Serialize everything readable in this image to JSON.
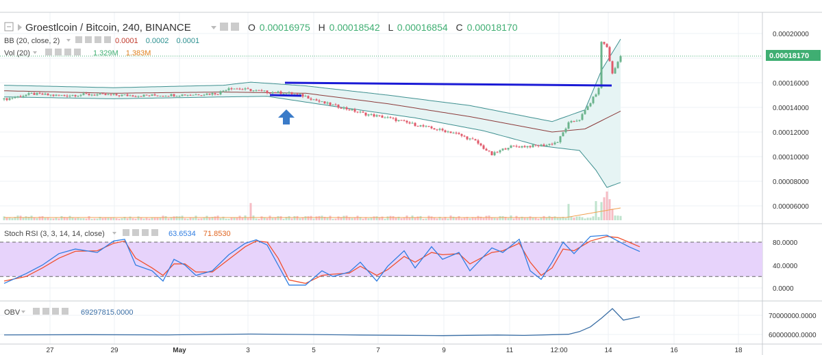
{
  "header": {
    "title": "Groestlcoin / Bitcoin, 240, BINANCE",
    "open_label": "O",
    "open_value": "0.00016975",
    "high_label": "H",
    "high_value": "0.00018542",
    "low_label": "L",
    "low_value": "0.00016854",
    "close_label": "C",
    "close_value": "0.00018170"
  },
  "indicators": {
    "bb": {
      "label": "BB (20, close, 2)",
      "v1": "0.0001",
      "v2": "0.0002",
      "v3": "0.0001"
    },
    "vol": {
      "label": "Vol (20)",
      "v1": "1.329M",
      "v2": "1.383M"
    },
    "stoch": {
      "label": "Stoch RSI (3, 3, 14, 14, close)",
      "k": "63.6534",
      "d": "71.8530"
    },
    "obv": {
      "label": "OBV",
      "value": "69297815.0000"
    }
  },
  "colors": {
    "up": "#6bb38c",
    "down": "#e0596a",
    "bb_band": "#3d8f8f",
    "bb_basis": "#8b3a3a",
    "bb_fill": "#e6f4f4",
    "stoch_fill": "#e7d3fb",
    "k_line": "#2f7de1",
    "d_line": "#f0502e",
    "obv_line": "#3a6ea5",
    "price_tag": "#3fae72",
    "annotation": "#1a1ad6",
    "arrow": "#3a7bc8"
  },
  "price_tag": "0.00018170",
  "x_ticks": [
    "27",
    "29",
    "May",
    "3",
    "5",
    "7",
    "9",
    "11",
    "12:00",
    "14",
    "16",
    "18"
  ],
  "chart_data": [
    {
      "type": "candlestick",
      "title": "Groestlcoin / Bitcoin, 240, BINANCE",
      "y_ticks": [
        "0.00020000",
        "0.00018000",
        "0.00016000",
        "0.00014000",
        "0.00012000",
        "0.00010000",
        "0.00008000",
        "0.00006000"
      ],
      "ylim": [
        5.2e-05,
        0.000208
      ],
      "anchors": [
        {
          "i": 0,
          "c": 0.0001465
        },
        {
          "i": 10,
          "c": 0.000151
        },
        {
          "i": 20,
          "c": 0.0001495
        },
        {
          "i": 30,
          "c": 0.0001505
        },
        {
          "i": 40,
          "c": 0.00015
        },
        {
          "i": 50,
          "c": 0.0001495
        },
        {
          "i": 60,
          "c": 0.00015
        },
        {
          "i": 70,
          "c": 0.0001505
        },
        {
          "i": 78,
          "c": 0.0001515
        },
        {
          "i": 82,
          "c": 0.000156
        },
        {
          "i": 88,
          "c": 0.0001545
        },
        {
          "i": 96,
          "c": 0.0001525
        },
        {
          "i": 104,
          "c": 0.0001515
        },
        {
          "i": 110,
          "c": 0.000149
        },
        {
          "i": 116,
          "c": 0.000144
        },
        {
          "i": 124,
          "c": 0.0001395
        },
        {
          "i": 132,
          "c": 0.0001345
        },
        {
          "i": 140,
          "c": 0.0001315
        },
        {
          "i": 148,
          "c": 0.000127
        },
        {
          "i": 156,
          "c": 0.000123
        },
        {
          "i": 164,
          "c": 0.0001195
        },
        {
          "i": 172,
          "c": 0.0001125
        },
        {
          "i": 178,
          "c": 0.0001015
        },
        {
          "i": 184,
          "c": 0.000108
        },
        {
          "i": 192,
          "c": 0.0001085
        },
        {
          "i": 198,
          "c": 0.0001095
        },
        {
          "i": 202,
          "c": 0.000112
        },
        {
          "i": 206,
          "c": 0.000127
        },
        {
          "i": 210,
          "c": 0.0001305
        },
        {
          "i": 214,
          "c": 0.000144
        },
        {
          "i": 217,
          "c": 0.000155
        },
        {
          "i": 218,
          "c": 0.0001935
        },
        {
          "i": 220,
          "c": 0.000189
        },
        {
          "i": 222,
          "c": 0.000167
        },
        {
          "i": 225,
          "c": 0.000182
        }
      ],
      "bollinger_upper_anchors": [
        {
          "i": 0,
          "v": 0.000158
        },
        {
          "i": 40,
          "v": 0.000156
        },
        {
          "i": 80,
          "v": 0.000158
        },
        {
          "i": 90,
          "v": 0.0001605
        },
        {
          "i": 110,
          "v": 0.0001575
        },
        {
          "i": 140,
          "v": 0.00015
        },
        {
          "i": 170,
          "v": 0.0001415
        },
        {
          "i": 200,
          "v": 0.0001285
        },
        {
          "i": 212,
          "v": 0.000138
        },
        {
          "i": 218,
          "v": 0.00017
        },
        {
          "i": 225,
          "v": 0.0001955
        }
      ],
      "bollinger_basis_anchors": [
        {
          "i": 0,
          "v": 0.0001535
        },
        {
          "i": 40,
          "v": 0.0001515
        },
        {
          "i": 80,
          "v": 0.0001525
        },
        {
          "i": 110,
          "v": 0.0001515
        },
        {
          "i": 140,
          "v": 0.000143
        },
        {
          "i": 170,
          "v": 0.0001325
        },
        {
          "i": 200,
          "v": 0.00012
        },
        {
          "i": 212,
          "v": 0.0001225
        },
        {
          "i": 225,
          "v": 0.000137
        }
      ],
      "bollinger_lower_anchors": [
        {
          "i": 0,
          "v": 0.0001485
        },
        {
          "i": 40,
          "v": 0.000147
        },
        {
          "i": 80,
          "v": 0.0001485
        },
        {
          "i": 96,
          "v": 0.000149
        },
        {
          "i": 120,
          "v": 0.000141
        },
        {
          "i": 150,
          "v": 0.0001315
        },
        {
          "i": 175,
          "v": 0.000121
        },
        {
          "i": 195,
          "v": 0.000109
        },
        {
          "i": 210,
          "v": 0.000105
        },
        {
          "i": 216,
          "v": 8.9e-05
        },
        {
          "i": 220,
          "v": 7.5e-05
        },
        {
          "i": 225,
          "v": 7.9e-05
        }
      ],
      "volume_spikes": [
        {
          "i": 90,
          "v": 0.9
        },
        {
          "i": 206,
          "v": 0.85
        },
        {
          "i": 216,
          "v": 1.0
        },
        {
          "i": 218,
          "v": 0.95
        },
        {
          "i": 219,
          "v": 1.2
        },
        {
          "i": 220,
          "v": 1.5
        },
        {
          "i": 221,
          "v": 1.1
        },
        {
          "i": 222,
          "v": 0.6
        }
      ]
    },
    {
      "type": "line",
      "title": "Stoch RSI (3, 3, 14, 14, close)",
      "y_ticks": [
        "80.0000",
        "40.0000",
        "0.0000"
      ],
      "ylim": [
        -14,
        100
      ],
      "bands": [
        20,
        80
      ],
      "series": [
        {
          "name": "K",
          "values": [
            [
              0,
              8
            ],
            [
              8,
              25
            ],
            [
              14,
              40
            ],
            [
              20,
              60
            ],
            [
              26,
              68
            ],
            [
              34,
              62
            ],
            [
              40,
              82
            ],
            [
              44,
              85
            ],
            [
              48,
              40
            ],
            [
              54,
              30
            ],
            [
              58,
              12
            ],
            [
              62,
              50
            ],
            [
              66,
              40
            ],
            [
              70,
              22
            ],
            [
              76,
              30
            ],
            [
              82,
              58
            ],
            [
              88,
              78
            ],
            [
              92,
              84
            ],
            [
              96,
              75
            ],
            [
              100,
              40
            ],
            [
              104,
              5
            ],
            [
              110,
              5
            ],
            [
              116,
              30
            ],
            [
              120,
              20
            ],
            [
              126,
              28
            ],
            [
              130,
              45
            ],
            [
              136,
              12
            ],
            [
              140,
              38
            ],
            [
              146,
              65
            ],
            [
              150,
              35
            ],
            [
              156,
              72
            ],
            [
              160,
              50
            ],
            [
              166,
              62
            ],
            [
              170,
              30
            ],
            [
              178,
              70
            ],
            [
              182,
              62
            ],
            [
              188,
              85
            ],
            [
              192,
              30
            ],
            [
              196,
              15
            ],
            [
              200,
              45
            ],
            [
              204,
              80
            ],
            [
              208,
              60
            ],
            [
              214,
              90
            ],
            [
              220,
              92
            ],
            [
              224,
              82
            ],
            [
              228,
              72
            ],
            [
              232,
              63.6534
            ]
          ]
        },
        {
          "name": "D",
          "values": [
            [
              0,
              12
            ],
            [
              8,
              20
            ],
            [
              14,
              35
            ],
            [
              20,
              52
            ],
            [
              26,
              64
            ],
            [
              34,
              65
            ],
            [
              40,
              78
            ],
            [
              44,
              82
            ],
            [
              48,
              52
            ],
            [
              54,
              35
            ],
            [
              58,
              22
            ],
            [
              62,
              42
            ],
            [
              66,
              42
            ],
            [
              70,
              28
            ],
            [
              76,
              28
            ],
            [
              82,
              50
            ],
            [
              88,
              72
            ],
            [
              92,
              82
            ],
            [
              96,
              80
            ],
            [
              100,
              52
            ],
            [
              104,
              14
            ],
            [
              110,
              8
            ],
            [
              116,
              22
            ],
            [
              120,
              24
            ],
            [
              126,
              26
            ],
            [
              130,
              38
            ],
            [
              136,
              22
            ],
            [
              140,
              32
            ],
            [
              146,
              55
            ],
            [
              150,
              45
            ],
            [
              156,
              62
            ],
            [
              160,
              58
            ],
            [
              166,
              60
            ],
            [
              170,
              42
            ],
            [
              178,
              62
            ],
            [
              182,
              65
            ],
            [
              188,
              78
            ],
            [
              192,
              45
            ],
            [
              196,
              22
            ],
            [
              200,
              35
            ],
            [
              204,
              68
            ],
            [
              208,
              65
            ],
            [
              214,
              82
            ],
            [
              220,
              90
            ],
            [
              224,
              88
            ],
            [
              228,
              80
            ],
            [
              232,
              71.853
            ]
          ]
        }
      ]
    },
    {
      "type": "line",
      "title": "OBV",
      "y_ticks": [
        "70000000.0000",
        "60000000.0000"
      ],
      "ylim": [
        56000000,
        76000000
      ],
      "series": [
        {
          "name": "OBV",
          "values": [
            [
              0,
              59800000
            ],
            [
              30,
              59900000
            ],
            [
              60,
              59800000
            ],
            [
              90,
              60200000
            ],
            [
              110,
              60000000
            ],
            [
              130,
              59700000
            ],
            [
              160,
              59400000
            ],
            [
              180,
              59700000
            ],
            [
              190,
              59500000
            ],
            [
              200,
              59900000
            ],
            [
              206,
              60100000
            ],
            [
              210,
              61500000
            ],
            [
              214,
              64000000
            ],
            [
              218,
              68500000
            ],
            [
              222,
              73500000
            ],
            [
              226,
              67500000
            ],
            [
              232,
              69297815
            ]
          ]
        }
      ]
    }
  ]
}
